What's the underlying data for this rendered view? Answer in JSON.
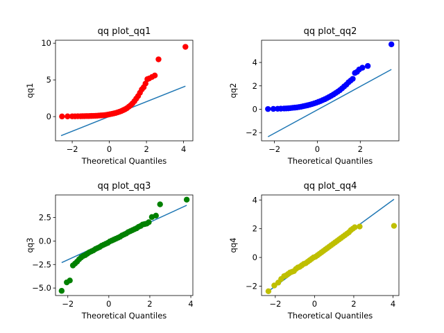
{
  "chart_data": [
    {
      "type": "scatter",
      "title": "qq plot_qq1",
      "xlabel": "Theoretical Quantiles",
      "ylabel": "qq1",
      "xlim": [
        -2.9,
        4.5
      ],
      "ylim": [
        -3.3,
        10.4
      ],
      "xticks": [
        -2,
        0,
        2,
        4
      ],
      "yticks": [
        0,
        5,
        10
      ],
      "marker_color": "#ff0000",
      "line_color": "#1f77b4",
      "reference_line": {
        "x": [
          -2.6,
          4.1
        ],
        "y": [
          -2.6,
          4.15
        ]
      },
      "points": {
        "x": [
          -2.55,
          -2.25,
          -2.0,
          -1.85,
          -1.7,
          -1.55,
          -1.45,
          -1.35,
          -1.25,
          -1.15,
          -1.05,
          -0.95,
          -0.85,
          -0.75,
          -0.65,
          -0.55,
          -0.45,
          -0.35,
          -0.25,
          -0.15,
          -0.05,
          0.05,
          0.15,
          0.25,
          0.35,
          0.45,
          0.55,
          0.65,
          0.75,
          0.85,
          0.95,
          1.05,
          1.15,
          1.25,
          1.35,
          1.45,
          1.55,
          1.65,
          1.75,
          1.85,
          1.95,
          2.05,
          2.15,
          2.3,
          2.45,
          2.65,
          4.1
        ],
        "y": [
          0.02,
          0.03,
          0.04,
          0.04,
          0.05,
          0.05,
          0.06,
          0.06,
          0.07,
          0.07,
          0.08,
          0.09,
          0.1,
          0.11,
          0.12,
          0.14,
          0.16,
          0.18,
          0.2,
          0.24,
          0.28,
          0.33,
          0.38,
          0.44,
          0.5,
          0.58,
          0.66,
          0.76,
          0.88,
          1.0,
          1.15,
          1.35,
          1.55,
          1.8,
          2.1,
          2.45,
          2.8,
          3.25,
          3.7,
          4.0,
          4.5,
          5.1,
          5.2,
          5.4,
          5.6,
          7.8,
          9.5
        ]
      }
    },
    {
      "type": "scatter",
      "title": "qq plot_qq2",
      "xlabel": "Theoretical Quantiles",
      "ylabel": "qq2",
      "xlim": [
        -2.6,
        3.8
      ],
      "ylim": [
        -2.7,
        5.9
      ],
      "xticks": [
        -2,
        0,
        2
      ],
      "yticks": [
        -2,
        0,
        2,
        4
      ],
      "marker_color": "#0000ff",
      "line_color": "#1f77b4",
      "reference_line": {
        "x": [
          -2.3,
          3.45
        ],
        "y": [
          -2.35,
          3.4
        ]
      },
      "points": {
        "x": [
          -2.3,
          -2.05,
          -1.85,
          -1.7,
          -1.55,
          -1.45,
          -1.35,
          -1.25,
          -1.15,
          -1.05,
          -0.95,
          -0.85,
          -0.75,
          -0.65,
          -0.55,
          -0.45,
          -0.35,
          -0.25,
          -0.15,
          -0.05,
          0.05,
          0.15,
          0.25,
          0.35,
          0.45,
          0.55,
          0.65,
          0.75,
          0.85,
          0.95,
          1.05,
          1.15,
          1.25,
          1.35,
          1.45,
          1.55,
          1.65,
          1.75,
          1.85,
          1.95,
          2.1,
          2.35,
          3.45
        ],
        "y": [
          0.02,
          0.03,
          0.04,
          0.05,
          0.06,
          0.07,
          0.08,
          0.1,
          0.12,
          0.14,
          0.16,
          0.19,
          0.22,
          0.26,
          0.3,
          0.34,
          0.39,
          0.44,
          0.5,
          0.56,
          0.63,
          0.7,
          0.78,
          0.86,
          0.95,
          1.05,
          1.15,
          1.26,
          1.38,
          1.5,
          1.63,
          1.78,
          1.95,
          2.1,
          2.3,
          2.45,
          2.6,
          3.1,
          3.2,
          3.4,
          3.55,
          3.7,
          5.55
        ]
      }
    },
    {
      "type": "scatter",
      "title": "qq plot_qq3",
      "xlabel": "Theoretical Quantiles",
      "ylabel": "qq3",
      "xlim": [
        -2.6,
        4.1
      ],
      "ylim": [
        -5.8,
        4.9
      ],
      "xticks": [
        -2,
        0,
        2,
        4
      ],
      "yticks": [
        -5.0,
        -2.5,
        0.0,
        2.5
      ],
      "y_tick_labels": [
        "−5.0",
        "−2.5",
        "0.0",
        "2.5"
      ],
      "marker_color": "#008000",
      "line_color": "#1f77b4",
      "reference_line": {
        "x": [
          -2.3,
          3.8
        ],
        "y": [
          -2.3,
          3.8
        ]
      },
      "points": {
        "x": [
          -2.3,
          -2.05,
          -1.9,
          -1.75,
          -1.65,
          -1.55,
          -1.45,
          -1.35,
          -1.25,
          -1.15,
          -1.05,
          -0.95,
          -0.85,
          -0.75,
          -0.65,
          -0.55,
          -0.45,
          -0.35,
          -0.25,
          -0.15,
          -0.05,
          0.05,
          0.15,
          0.25,
          0.35,
          0.45,
          0.55,
          0.65,
          0.75,
          0.85,
          0.95,
          1.05,
          1.15,
          1.25,
          1.35,
          1.45,
          1.55,
          1.65,
          1.75,
          1.85,
          1.95,
          2.1,
          2.3,
          2.5,
          3.8
        ],
        "y": [
          -5.3,
          -4.4,
          -4.2,
          -2.6,
          -2.4,
          -2.2,
          -1.95,
          -1.75,
          -1.6,
          -1.5,
          -1.35,
          -1.2,
          -1.1,
          -1.0,
          -0.85,
          -0.75,
          -0.65,
          -0.5,
          -0.4,
          -0.3,
          -0.2,
          -0.05,
          0.05,
          0.15,
          0.25,
          0.35,
          0.45,
          0.6,
          0.7,
          0.8,
          0.95,
          1.05,
          1.15,
          1.25,
          1.35,
          1.5,
          1.6,
          1.75,
          1.8,
          1.85,
          2.0,
          2.55,
          2.7,
          3.9,
          4.4
        ]
      }
    },
    {
      "type": "scatter",
      "title": "qq plot_qq4",
      "xlabel": "Theoretical Quantiles",
      "ylabel": "qq4",
      "xlim": [
        -2.7,
        4.3
      ],
      "ylim": [
        -2.65,
        4.35
      ],
      "xticks": [
        -2,
        0,
        2,
        4
      ],
      "yticks": [
        -2,
        0,
        2,
        4
      ],
      "marker_color": "#bfbf00",
      "line_color": "#1f77b4",
      "reference_line": {
        "x": [
          -2.35,
          4.05
        ],
        "y": [
          -2.35,
          4.05
        ]
      },
      "points": {
        "x": [
          -2.35,
          -2.05,
          -1.85,
          -1.7,
          -1.55,
          -1.45,
          -1.35,
          -1.25,
          -1.15,
          -1.05,
          -0.95,
          -0.85,
          -0.75,
          -0.65,
          -0.55,
          -0.45,
          -0.35,
          -0.25,
          -0.15,
          -0.05,
          0.05,
          0.15,
          0.25,
          0.35,
          0.45,
          0.55,
          0.65,
          0.75,
          0.85,
          0.95,
          1.05,
          1.15,
          1.25,
          1.35,
          1.45,
          1.55,
          1.65,
          1.75,
          1.85,
          1.95,
          2.05,
          2.3,
          4.05
        ],
        "y": [
          -2.35,
          -1.95,
          -1.75,
          -1.5,
          -1.3,
          -1.25,
          -1.15,
          -1.05,
          -1.0,
          -0.95,
          -0.8,
          -0.7,
          -0.65,
          -0.55,
          -0.45,
          -0.4,
          -0.3,
          -0.2,
          -0.1,
          0.0,
          0.05,
          0.15,
          0.25,
          0.35,
          0.45,
          0.55,
          0.65,
          0.75,
          0.85,
          0.95,
          1.05,
          1.15,
          1.25,
          1.35,
          1.45,
          1.55,
          1.65,
          1.75,
          1.9,
          2.0,
          2.1,
          2.15,
          2.2
        ]
      }
    }
  ]
}
